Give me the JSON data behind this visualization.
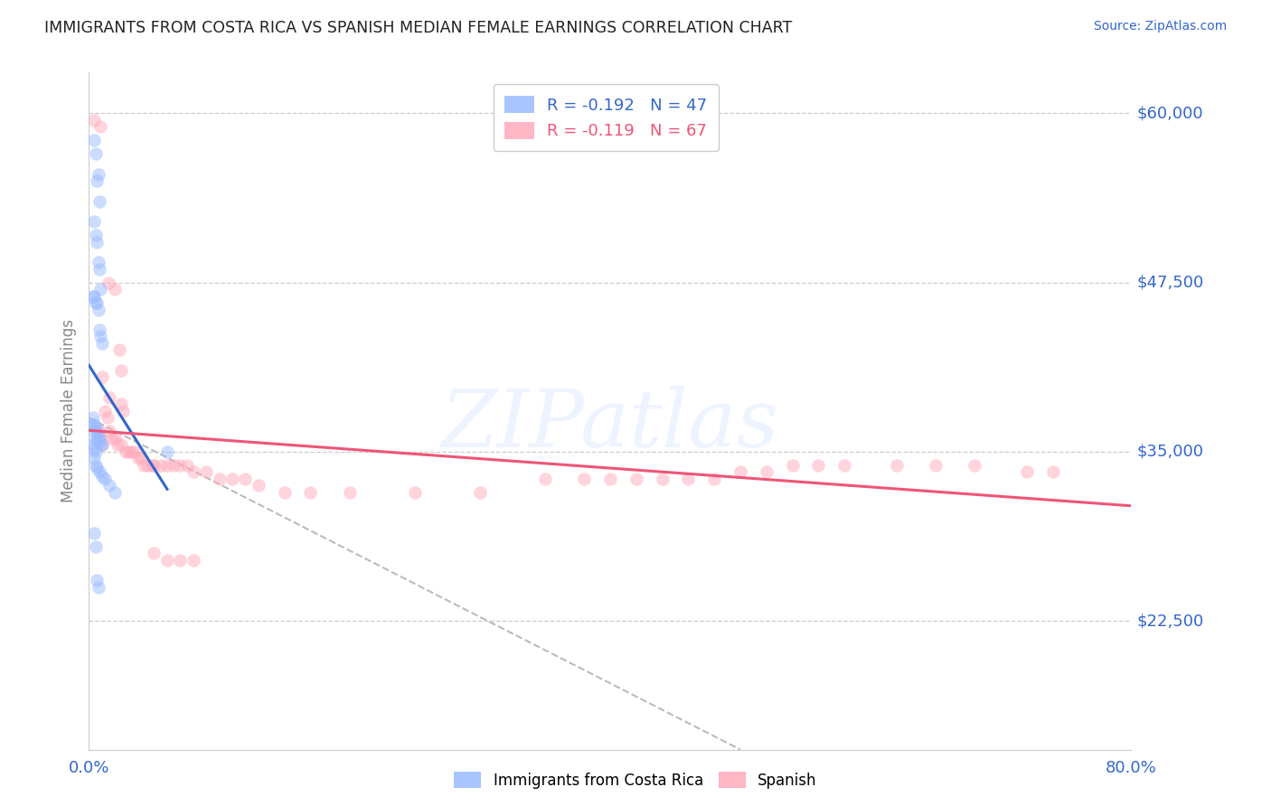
{
  "title": "IMMIGRANTS FROM COSTA RICA VS SPANISH MEDIAN FEMALE EARNINGS CORRELATION CHART",
  "source": "Source: ZipAtlas.com",
  "ylabel": "Median Female Earnings",
  "xmin": 0.0,
  "xmax": 0.8,
  "ymin": 13000,
  "ymax": 63000,
  "ytick_vals": [
    22500,
    35000,
    47500,
    60000
  ],
  "ytick_labels": [
    "$22,500",
    "$35,000",
    "$47,500",
    "$60,000"
  ],
  "xtick_labels": [
    "0.0%",
    "80.0%"
  ],
  "watermark": "ZIPatlas",
  "legend_1_label": "R = -0.192   N = 47",
  "legend_2_label": "R = -0.119   N = 67",
  "blue_fill": "#99bbff",
  "pink_fill": "#ffaabb",
  "blue_line": "#3366cc",
  "pink_line": "#ee5577",
  "dash_color": "#bbbbbb",
  "title_color": "#222222",
  "axis_val_color": "#3366cc",
  "axis_label_color": "#888888",
  "bg_color": "#ffffff",
  "grid_color": "#cccccc",
  "alpha": 0.5,
  "marker_size": 110,
  "costa_rica_x": [
    0.004,
    0.005,
    0.006,
    0.007,
    0.008,
    0.004,
    0.005,
    0.006,
    0.007,
    0.008,
    0.009,
    0.003,
    0.004,
    0.005,
    0.006,
    0.007,
    0.008,
    0.009,
    0.01,
    0.003,
    0.004,
    0.005,
    0.006,
    0.007,
    0.008,
    0.009,
    0.01,
    0.003,
    0.004,
    0.005,
    0.006,
    0.003,
    0.004,
    0.005,
    0.004,
    0.005,
    0.006,
    0.008,
    0.01,
    0.012,
    0.016,
    0.02,
    0.004,
    0.005,
    0.006,
    0.007,
    0.06
  ],
  "costa_rica_y": [
    58000,
    57000,
    55000,
    55500,
    53500,
    52000,
    51000,
    50500,
    49000,
    48500,
    47000,
    46500,
    46500,
    46000,
    46000,
    45500,
    44000,
    43500,
    43000,
    37500,
    37000,
    36800,
    36500,
    36000,
    36000,
    35500,
    35500,
    37000,
    36500,
    36000,
    35800,
    35500,
    35200,
    35000,
    34500,
    34000,
    33800,
    33500,
    33200,
    33000,
    32500,
    32000,
    29000,
    28000,
    25500,
    25000,
    35000
  ],
  "spanish_x": [
    0.004,
    0.009,
    0.015,
    0.02,
    0.023,
    0.025,
    0.01,
    0.016,
    0.025,
    0.026,
    0.008,
    0.009,
    0.01,
    0.012,
    0.014,
    0.016,
    0.018,
    0.02,
    0.022,
    0.025,
    0.028,
    0.03,
    0.032,
    0.035,
    0.038,
    0.04,
    0.042,
    0.045,
    0.048,
    0.05,
    0.055,
    0.06,
    0.065,
    0.07,
    0.075,
    0.08,
    0.09,
    0.1,
    0.11,
    0.12,
    0.13,
    0.15,
    0.17,
    0.2,
    0.25,
    0.3,
    0.35,
    0.38,
    0.4,
    0.42,
    0.44,
    0.46,
    0.48,
    0.5,
    0.52,
    0.54,
    0.56,
    0.58,
    0.62,
    0.65,
    0.68,
    0.72,
    0.74,
    0.05,
    0.06,
    0.07,
    0.08
  ],
  "spanish_y": [
    59500,
    59000,
    47500,
    47000,
    42500,
    41000,
    40500,
    39000,
    38500,
    38000,
    36500,
    36000,
    35500,
    38000,
    37500,
    36500,
    36000,
    36000,
    35500,
    35500,
    35000,
    35000,
    35000,
    35000,
    34500,
    34500,
    34000,
    34000,
    34000,
    34000,
    34000,
    34000,
    34000,
    34000,
    34000,
    33500,
    33500,
    33000,
    33000,
    33000,
    32500,
    32000,
    32000,
    32000,
    32000,
    32000,
    33000,
    33000,
    33000,
    33000,
    33000,
    33000,
    33000,
    33500,
    33500,
    34000,
    34000,
    34000,
    34000,
    34000,
    34000,
    33500,
    33500,
    27500,
    27000,
    27000,
    27000
  ]
}
